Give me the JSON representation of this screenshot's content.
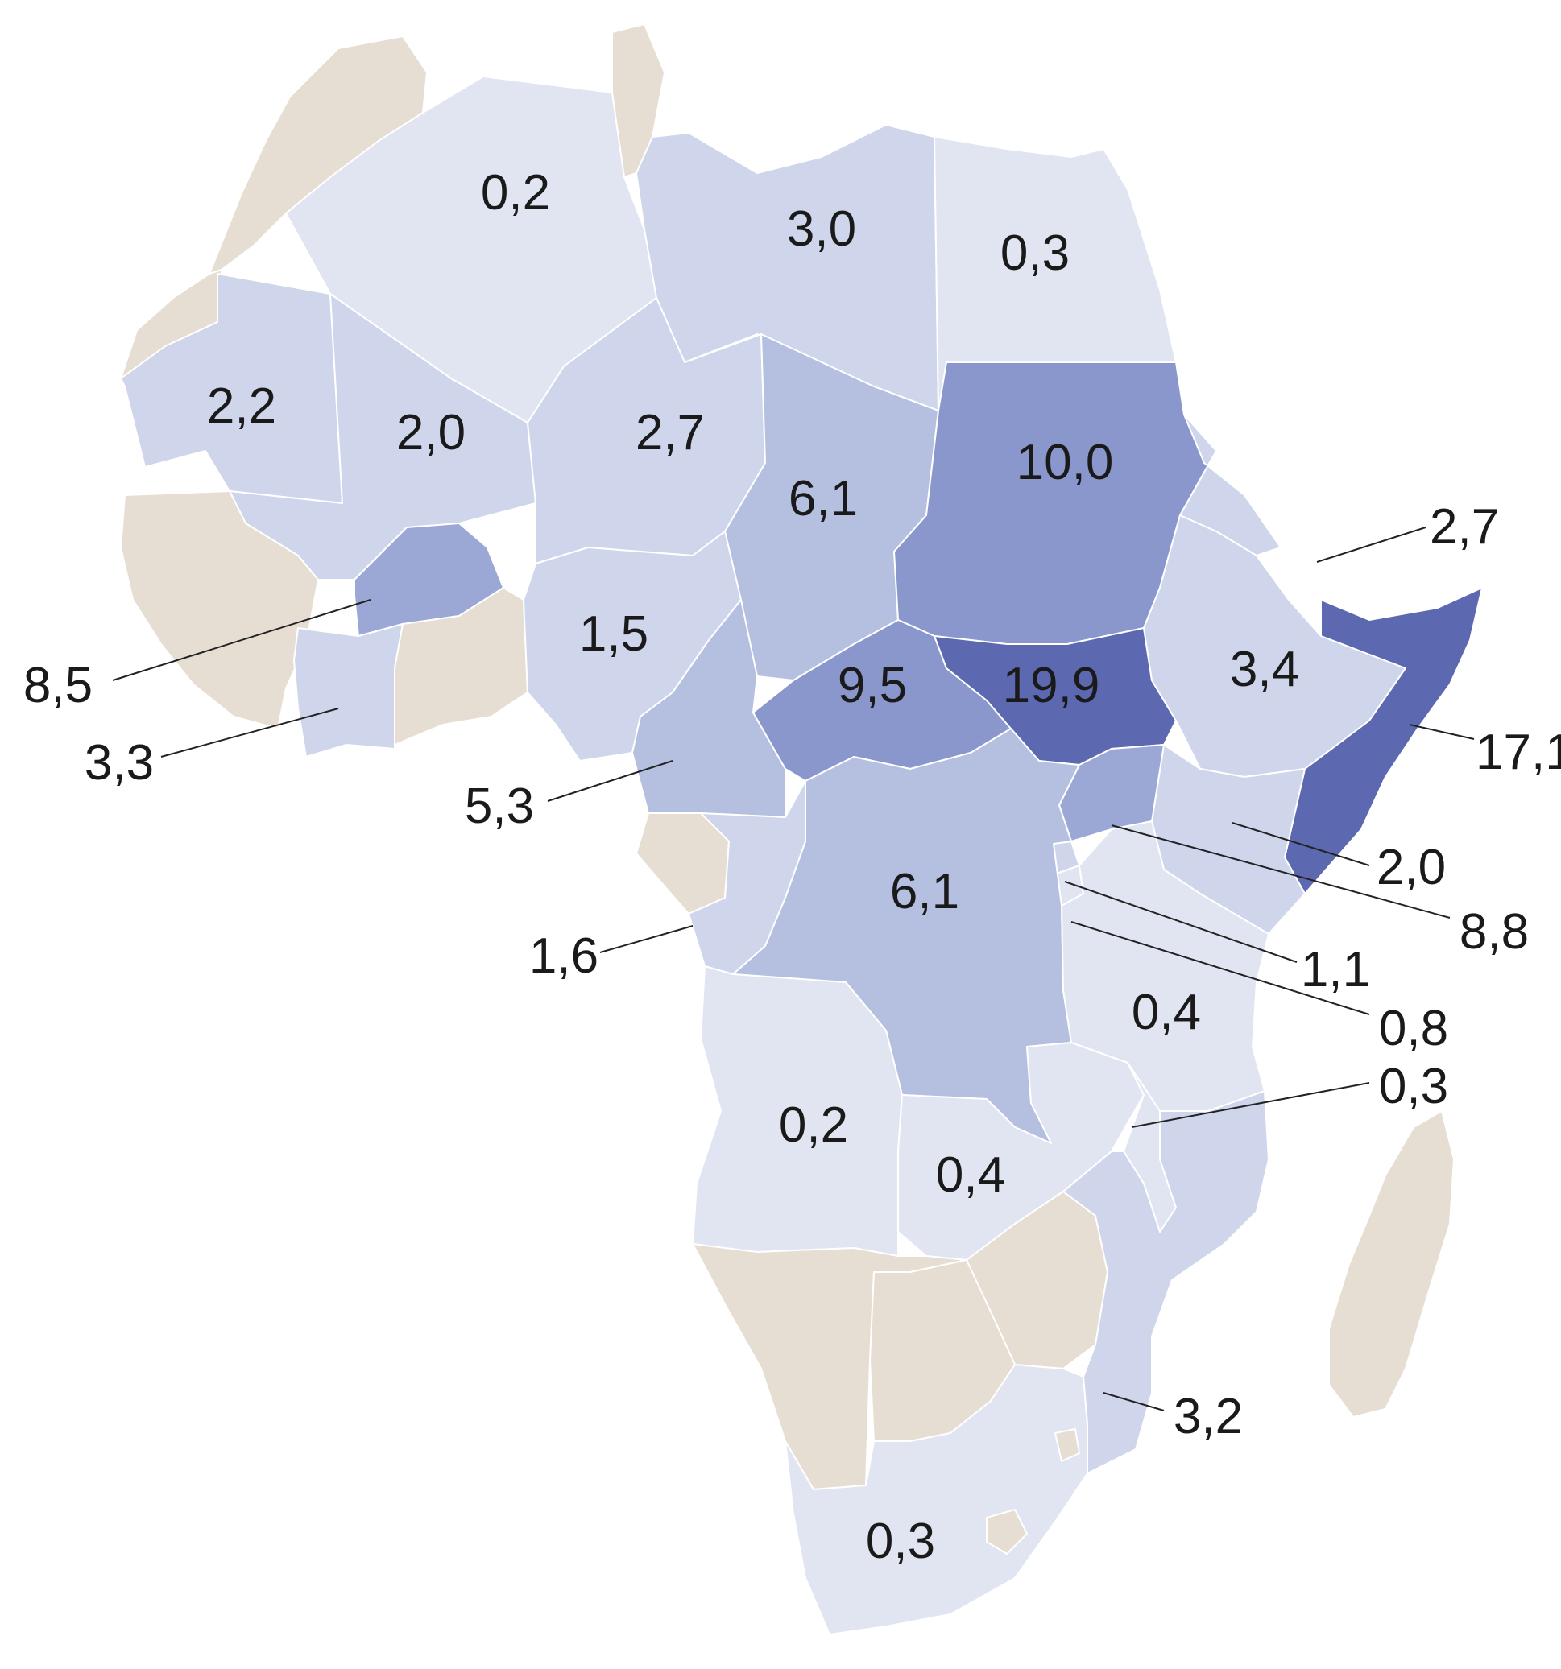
{
  "colors": {
    "no_data": "#e6ded3",
    "scale": [
      "#e1e5f1",
      "#cfd6eb",
      "#b5bfe0",
      "#9ba8d5",
      "#8a97cc",
      "#5c68b0"
    ],
    "background": "#ffffff",
    "label": "#1a1a1a"
  },
  "regions": [
    {
      "id": "morocco",
      "value": null
    },
    {
      "id": "western-sahara",
      "value": null
    },
    {
      "id": "mauritania",
      "value": "2,2"
    },
    {
      "id": "algeria",
      "value": "0,2"
    },
    {
      "id": "tunisia",
      "value": null
    },
    {
      "id": "libya",
      "value": "3,0"
    },
    {
      "id": "egypt",
      "value": "0,3"
    },
    {
      "id": "mali",
      "value": "2,0"
    },
    {
      "id": "niger",
      "value": "2,7"
    },
    {
      "id": "chad",
      "value": "6,1"
    },
    {
      "id": "sudan",
      "value": "10,0"
    },
    {
      "id": "eritrea",
      "value": "2,7"
    },
    {
      "id": "west-coast",
      "value": null
    },
    {
      "id": "burkina-faso",
      "value": "8,5"
    },
    {
      "id": "cote-divoire",
      "value": "3,3"
    },
    {
      "id": "ghana-togo-benin",
      "value": null
    },
    {
      "id": "nigeria",
      "value": "1,5"
    },
    {
      "id": "cameroon",
      "value": "5,3"
    },
    {
      "id": "car",
      "value": "9,5"
    },
    {
      "id": "south-sudan",
      "value": "19,9"
    },
    {
      "id": "ethiopia",
      "value": "3,4"
    },
    {
      "id": "somalia",
      "value": "17,1"
    },
    {
      "id": "kenya",
      "value": "2,0"
    },
    {
      "id": "uganda",
      "value": "8,8"
    },
    {
      "id": "rwanda",
      "value": "1,1"
    },
    {
      "id": "burundi",
      "value": "0,8"
    },
    {
      "id": "gabon-eq-guinea",
      "value": null
    },
    {
      "id": "congo",
      "value": "1,6"
    },
    {
      "id": "drc",
      "value": "6,1"
    },
    {
      "id": "tanzania",
      "value": "0,4"
    },
    {
      "id": "angola",
      "value": "0,2"
    },
    {
      "id": "zambia",
      "value": "0,4"
    },
    {
      "id": "malawi",
      "value": "0,3"
    },
    {
      "id": "zimbabwe",
      "value": null
    },
    {
      "id": "mozambique",
      "value": "3,2"
    },
    {
      "id": "namibia",
      "value": null
    },
    {
      "id": "botswana",
      "value": null
    },
    {
      "id": "south-africa",
      "value": "0,3"
    },
    {
      "id": "eswatini",
      "value": null
    },
    {
      "id": "lesotho",
      "value": null
    },
    {
      "id": "madagascar",
      "value": null
    }
  ],
  "labels": [
    {
      "id": "algeria",
      "text": "0,2"
    },
    {
      "id": "libya",
      "text": "3,0"
    },
    {
      "id": "egypt",
      "text": "0,3"
    },
    {
      "id": "mauritania",
      "text": "2,2"
    },
    {
      "id": "mali",
      "text": "2,0"
    },
    {
      "id": "niger",
      "text": "2,7"
    },
    {
      "id": "chad",
      "text": "6,1"
    },
    {
      "id": "sudan",
      "text": "10,0"
    },
    {
      "id": "eritrea",
      "text": "2,7"
    },
    {
      "id": "burkina-faso",
      "text": "8,5"
    },
    {
      "id": "cote-divoire",
      "text": "3,3"
    },
    {
      "id": "nigeria",
      "text": "1,5"
    },
    {
      "id": "cameroon",
      "text": "5,3"
    },
    {
      "id": "car",
      "text": "9,5"
    },
    {
      "id": "south-sudan",
      "text": "19,9"
    },
    {
      "id": "ethiopia",
      "text": "3,4"
    },
    {
      "id": "somalia",
      "text": "17,1"
    },
    {
      "id": "kenya",
      "text": "2,0"
    },
    {
      "id": "uganda",
      "text": "8,8"
    },
    {
      "id": "rwanda",
      "text": "1,1"
    },
    {
      "id": "burundi",
      "text": "0,8"
    },
    {
      "id": "congo",
      "text": "1,6"
    },
    {
      "id": "drc",
      "text": "6,1"
    },
    {
      "id": "tanzania",
      "text": "0,4"
    },
    {
      "id": "malawi",
      "text": "0,3"
    },
    {
      "id": "angola",
      "text": "0,2"
    },
    {
      "id": "zambia",
      "text": "0,4"
    },
    {
      "id": "mozambique",
      "text": "3,2"
    },
    {
      "id": "south-africa",
      "text": "0,3"
    }
  ]
}
